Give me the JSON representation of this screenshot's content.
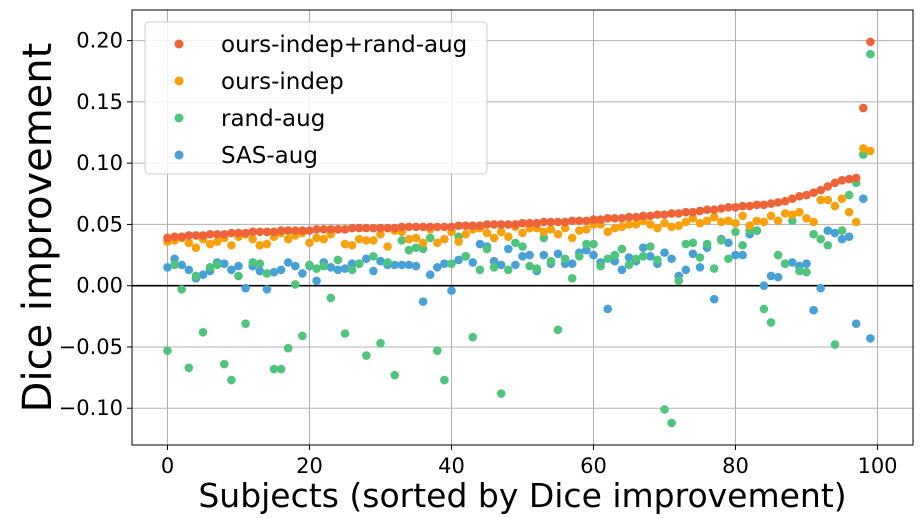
{
  "chart_data": {
    "type": "scatter",
    "title": "",
    "xlabel": "Subjects (sorted by Dice improvement)",
    "ylabel": "Dice improvement",
    "xlim": [
      -5,
      105
    ],
    "ylim": [
      -0.13,
      0.225
    ],
    "xticks": [
      0,
      20,
      40,
      60,
      80,
      100
    ],
    "yticks": [
      -0.1,
      -0.05,
      0.0,
      0.05,
      0.1,
      0.15,
      0.2
    ],
    "ytick_labels": [
      "−0.10",
      "−0.05",
      "0.00",
      "0.05",
      "0.10",
      "0.15",
      "0.20"
    ],
    "grid": true,
    "zero_line": true,
    "legend_position": "top-left",
    "x": [
      0,
      1,
      2,
      3,
      4,
      5,
      6,
      7,
      8,
      9,
      10,
      11,
      12,
      13,
      14,
      15,
      16,
      17,
      18,
      19,
      20,
      21,
      22,
      23,
      24,
      25,
      26,
      27,
      28,
      29,
      30,
      31,
      32,
      33,
      34,
      35,
      36,
      37,
      38,
      39,
      40,
      41,
      42,
      43,
      44,
      45,
      46,
      47,
      48,
      49,
      50,
      51,
      52,
      53,
      54,
      55,
      56,
      57,
      58,
      59,
      60,
      61,
      62,
      63,
      64,
      65,
      66,
      67,
      68,
      69,
      70,
      71,
      72,
      73,
      74,
      75,
      76,
      77,
      78,
      79,
      80,
      81,
      82,
      83,
      84,
      85,
      86,
      87,
      88,
      89,
      90,
      91,
      92,
      93,
      94,
      95,
      96,
      97,
      98,
      99
    ],
    "series": [
      {
        "name": "ours-indep+rand-aug",
        "color": "#EE6338",
        "values": [
          0.039,
          0.04,
          0.04,
          0.041,
          0.041,
          0.041,
          0.042,
          0.042,
          0.042,
          0.043,
          0.043,
          0.043,
          0.044,
          0.044,
          0.044,
          0.044,
          0.045,
          0.045,
          0.045,
          0.045,
          0.045,
          0.046,
          0.046,
          0.046,
          0.046,
          0.046,
          0.047,
          0.047,
          0.047,
          0.047,
          0.047,
          0.047,
          0.047,
          0.048,
          0.048,
          0.048,
          0.048,
          0.048,
          0.048,
          0.048,
          0.048,
          0.049,
          0.049,
          0.049,
          0.049,
          0.05,
          0.05,
          0.05,
          0.05,
          0.05,
          0.051,
          0.051,
          0.051,
          0.052,
          0.052,
          0.052,
          0.052,
          0.053,
          0.053,
          0.053,
          0.054,
          0.054,
          0.055,
          0.055,
          0.055,
          0.056,
          0.056,
          0.057,
          0.057,
          0.058,
          0.058,
          0.059,
          0.059,
          0.06,
          0.06,
          0.061,
          0.062,
          0.062,
          0.063,
          0.064,
          0.064,
          0.065,
          0.065,
          0.066,
          0.066,
          0.067,
          0.068,
          0.069,
          0.071,
          0.073,
          0.074,
          0.076,
          0.078,
          0.081,
          0.084,
          0.086,
          0.087,
          0.088,
          0.145,
          0.199
        ]
      },
      {
        "name": "ours-indep",
        "color": "#F9A10C",
        "values": [
          0.036,
          0.037,
          0.039,
          0.035,
          0.031,
          0.038,
          0.034,
          0.036,
          0.039,
          0.033,
          0.04,
          0.042,
          0.038,
          0.033,
          0.034,
          0.04,
          0.043,
          0.038,
          0.041,
          0.043,
          0.035,
          0.039,
          0.038,
          0.042,
          0.046,
          0.034,
          0.033,
          0.038,
          0.037,
          0.037,
          0.042,
          0.032,
          0.045,
          0.044,
          0.038,
          0.039,
          0.035,
          0.046,
          0.035,
          0.038,
          0.044,
          0.036,
          0.042,
          0.046,
          0.047,
          0.043,
          0.039,
          0.044,
          0.04,
          0.048,
          0.043,
          0.047,
          0.047,
          0.044,
          0.046,
          0.042,
          0.047,
          0.039,
          0.045,
          0.046,
          0.05,
          0.05,
          0.044,
          0.047,
          0.048,
          0.05,
          0.05,
          0.053,
          0.05,
          0.047,
          0.051,
          0.048,
          0.049,
          0.052,
          0.055,
          0.051,
          0.053,
          0.056,
          0.052,
          0.053,
          0.051,
          0.057,
          0.049,
          0.053,
          0.052,
          0.057,
          0.053,
          0.059,
          0.058,
          0.06,
          0.055,
          0.052,
          0.07,
          0.07,
          0.065,
          0.071,
          0.06,
          0.052,
          0.112,
          0.11
        ]
      },
      {
        "name": "rand-aug",
        "color": "#4EC47C",
        "values": [
          -0.053,
          0.017,
          -0.003,
          -0.067,
          0.008,
          -0.038,
          0.015,
          0.017,
          -0.064,
          -0.077,
          0.008,
          -0.031,
          0.019,
          0.018,
          0.01,
          -0.068,
          -0.068,
          -0.051,
          0.001,
          -0.041,
          0.017,
          0.014,
          0.016,
          -0.01,
          0.021,
          -0.039,
          0.013,
          0.018,
          -0.057,
          0.024,
          -0.047,
          0.019,
          -0.073,
          0.037,
          0.029,
          0.031,
          0.03,
          0.039,
          -0.053,
          -0.077,
          0.018,
          0.04,
          0.024,
          -0.042,
          0.013,
          0.03,
          0.015,
          -0.088,
          0.013,
          0.035,
          0.032,
          0.016,
          0.014,
          0.039,
          0.02,
          -0.036,
          0.022,
          0.006,
          0.024,
          0.034,
          0.034,
          0.016,
          0.022,
          0.025,
          0.03,
          0.017,
          0.022,
          0.024,
          0.032,
          0.021,
          -0.101,
          -0.112,
          0.004,
          0.034,
          0.035,
          0.023,
          0.034,
          0.014,
          0.037,
          0.022,
          0.044,
          0.033,
          0.045,
          0.045,
          -0.019,
          -0.03,
          0.025,
          0.018,
          0.053,
          0.012,
          0.011,
          0.042,
          0.038,
          0.033,
          -0.048,
          0.045,
          0.074,
          0.084,
          0.107,
          0.189
        ]
      },
      {
        "name": "SAS-aug",
        "color": "#47A1D7",
        "values": [
          0.015,
          0.022,
          0.017,
          0.013,
          0.006,
          0.009,
          0.012,
          0.019,
          0.018,
          0.013,
          0.016,
          -0.002,
          0.016,
          0.012,
          -0.003,
          0.011,
          0.013,
          0.019,
          0.016,
          0.01,
          0.016,
          0.004,
          0.019,
          0.015,
          0.013,
          0.014,
          0.018,
          0.018,
          0.022,
          0.012,
          0.02,
          0.017,
          0.017,
          0.017,
          0.017,
          0.016,
          -0.013,
          0.009,
          0.015,
          0.018,
          -0.004,
          0.021,
          0.024,
          0.019,
          0.034,
          0.032,
          0.02,
          0.017,
          0.03,
          0.017,
          0.024,
          0.025,
          0.012,
          0.025,
          0.018,
          0.026,
          0.018,
          0.018,
          0.027,
          0.029,
          0.025,
          0.019,
          -0.019,
          0.02,
          0.013,
          0.023,
          0.02,
          0.031,
          0.024,
          0.018,
          0.027,
          0.022,
          0.008,
          0.013,
          0.026,
          0.015,
          0.031,
          -0.011,
          0.038,
          0.035,
          0.025,
          0.025,
          0.042,
          0.045,
          0.0,
          0.008,
          0.007,
          0.018,
          0.019,
          0.016,
          0.018,
          -0.02,
          -0.002,
          0.045,
          0.043,
          0.038,
          0.04,
          -0.031,
          0.071,
          -0.043
        ]
      }
    ]
  }
}
